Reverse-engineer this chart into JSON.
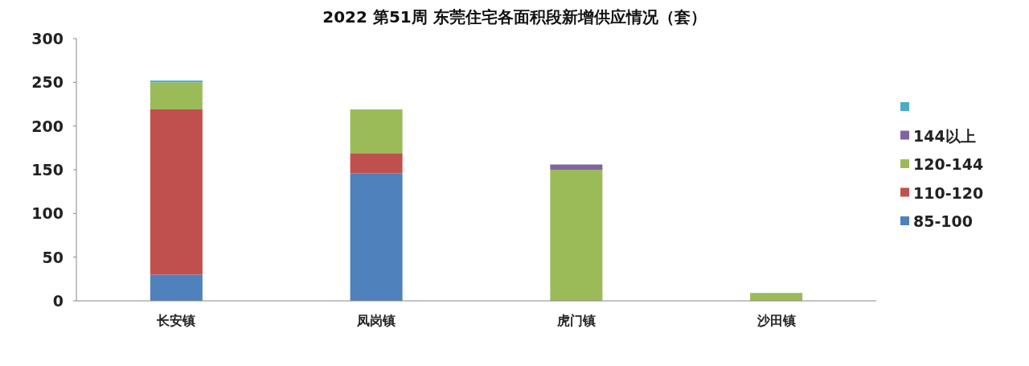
{
  "chart_data": {
    "type": "bar",
    "title": "2022 第51周 东莞住宅各面积段新增供应情况（套）",
    "stacked": true,
    "categories": [
      "长安镇",
      "凤岗镇",
      "虎门镇",
      "沙田镇"
    ],
    "series": [
      {
        "name": "85-100",
        "color": "#4f81bd",
        "values": [
          30,
          146,
          null,
          null
        ]
      },
      {
        "name": "110-120",
        "color": "#c0504d",
        "values": [
          189,
          23,
          null,
          null
        ]
      },
      {
        "name": "120-144",
        "color": "#9bbb59",
        "values": [
          31,
          50,
          150,
          9
        ]
      },
      {
        "name": "144以上",
        "color": "#8064a2",
        "values": [
          null,
          null,
          6,
          null
        ]
      },
      {
        "color": "#4bacc6",
        "values": [
          2,
          null,
          null,
          null
        ]
      }
    ],
    "ylim": [
      0,
      300
    ],
    "yticks": [
      0,
      50,
      100,
      150,
      200,
      250,
      300
    ],
    "grid": false,
    "legend": "right"
  }
}
